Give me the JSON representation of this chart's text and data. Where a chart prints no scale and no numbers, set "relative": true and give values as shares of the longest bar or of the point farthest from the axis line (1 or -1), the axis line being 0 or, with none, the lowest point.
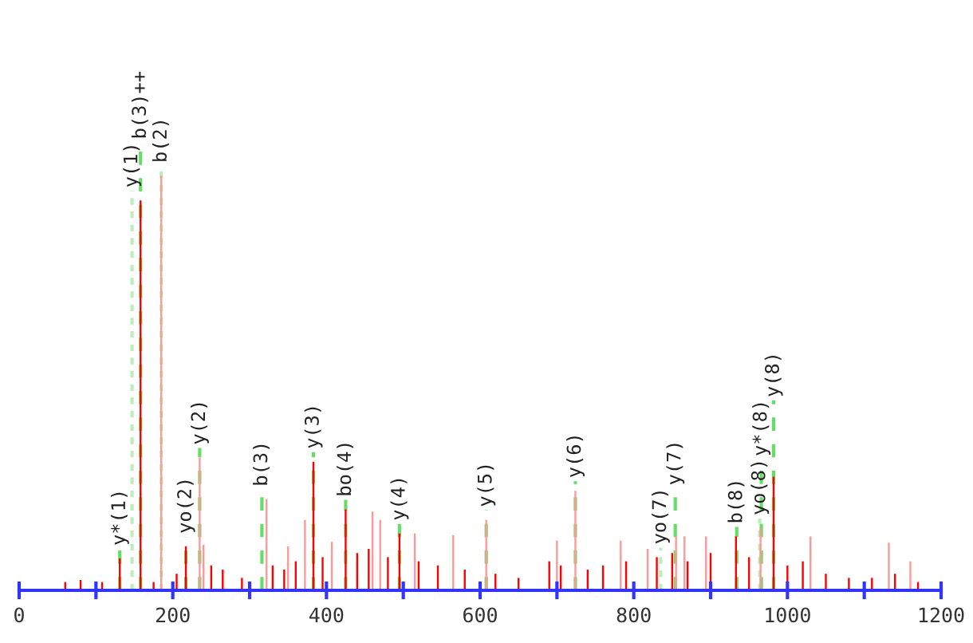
{
  "chart_data": {
    "type": "bar",
    "relative": true,
    "tick_labels": "x",
    "xlim": [
      0,
      1200
    ],
    "xticks": [
      0,
      {
        "value": 100,
        "label": null
      },
      200,
      {
        "value": 300,
        "label": null
      },
      400,
      {
        "value": 500,
        "label": null
      },
      600,
      {
        "value": 700,
        "label": null
      },
      800,
      {
        "value": 900,
        "label": null
      },
      1000,
      {
        "value": 1100,
        "label": null
      },
      1200
    ],
    "series": [
      {
        "color": "#ff9999",
        "x": [
          185,
          235,
          240,
          322,
          350,
          372,
          407,
          460,
          470,
          515,
          565,
          608,
          700,
          724,
          783,
          818,
          855,
          866,
          894,
          965,
          1030,
          1132,
          1160
        ],
        "values": [
          1.0,
          0.32,
          0.11,
          0.22,
          0.106,
          0.17,
          0.117,
          0.19,
          0.17,
          0.137,
          0.133,
          0.17,
          0.12,
          0.24,
          0.12,
          0.1,
          0.13,
          0.13,
          0.13,
          0.15,
          0.13,
          0.115,
          0.07
        ]
      },
      {
        "color": "#ff0000",
        "x": [
          60,
          80,
          108,
          131,
          158,
          175,
          205,
          217,
          250,
          265,
          290,
          330,
          345,
          360,
          383,
          395,
          425,
          440,
          455,
          480,
          495,
          520,
          545,
          580,
          620,
          650,
          690,
          705,
          740,
          760,
          790,
          830,
          850,
          870,
          900,
          933,
          950,
          982,
          1000,
          1020,
          1050,
          1080,
          1110,
          1140,
          1170
        ],
        "values": [
          0.02,
          0.025,
          0.02,
          0.077,
          0.94,
          0.02,
          0.04,
          0.106,
          0.06,
          0.05,
          0.03,
          0.06,
          0.05,
          0.07,
          0.31,
          0.08,
          0.195,
          0.09,
          0.1,
          0.08,
          0.137,
          0.07,
          0.06,
          0.05,
          0.04,
          0.03,
          0.07,
          0.06,
          0.05,
          0.06,
          0.07,
          0.08,
          0.09,
          0.07,
          0.09,
          0.13,
          0.08,
          0.274,
          0.06,
          0.07,
          0.04,
          0.03,
          0.03,
          0.04,
          0.02
        ]
      }
    ],
    "ref_lines": [
      {
        "axis": "x",
        "value": 131,
        "label": "y*(1)",
        "color": "#66dd66",
        "line_style": "dashed"
      },
      {
        "axis": "x",
        "value": 147,
        "label": "y(1)",
        "color": "#bbeebb",
        "line_style": "dotted"
      },
      {
        "axis": "x",
        "value": 158,
        "label": "b(3)++",
        "color": "#66dd66",
        "line_style": "dashed"
      },
      {
        "axis": "x",
        "value": 185,
        "label": "b(2)",
        "color": "#bbeebb",
        "line_style": "dotted"
      },
      {
        "axis": "x",
        "value": 217,
        "label": "yo(2)",
        "color": "#66dd66",
        "line_style": "dashed"
      },
      {
        "axis": "x",
        "value": 235,
        "label": "y(2)",
        "color": "#66dd66",
        "line_style": "dashed"
      },
      {
        "axis": "x",
        "value": 316,
        "label": "b(3)",
        "color": "#66dd66",
        "line_style": "dashed"
      },
      {
        "axis": "x",
        "value": 383,
        "label": "y(3)",
        "color": "#66dd66",
        "line_style": "dashed"
      },
      {
        "axis": "x",
        "value": 425,
        "label": "bo(4)",
        "color": "#66dd66",
        "line_style": "dashed"
      },
      {
        "axis": "x",
        "value": 495,
        "label": "y(4)",
        "color": "#66dd66",
        "line_style": "dashed"
      },
      {
        "axis": "x",
        "value": 608,
        "label": "y(5)",
        "color": "#66dd66",
        "line_style": "dashed"
      },
      {
        "axis": "x",
        "value": 724,
        "label": "y(6)",
        "color": "#66dd66",
        "line_style": "dashed"
      },
      {
        "axis": "x",
        "value": 835,
        "label": "yo(7)",
        "color": "#bbeebb",
        "line_style": "dotted"
      },
      {
        "axis": "x",
        "value": 854,
        "label": "y(7)",
        "color": "#66dd66",
        "line_style": "dashed"
      },
      {
        "axis": "x",
        "value": 934,
        "label": "b(8)",
        "color": "#66dd66",
        "line_style": "dashed"
      },
      {
        "axis": "x",
        "value": 964,
        "label": "yo(8)",
        "color": "#bbeebb",
        "line_style": "dotted"
      },
      {
        "axis": "x",
        "value": 966,
        "label": "y*(8)",
        "color": "#66dd66",
        "line_style": "dashed"
      },
      {
        "axis": "x",
        "value": 982,
        "label": "y(8)",
        "color": "#66dd66",
        "line_style": "dashed"
      }
    ]
  }
}
